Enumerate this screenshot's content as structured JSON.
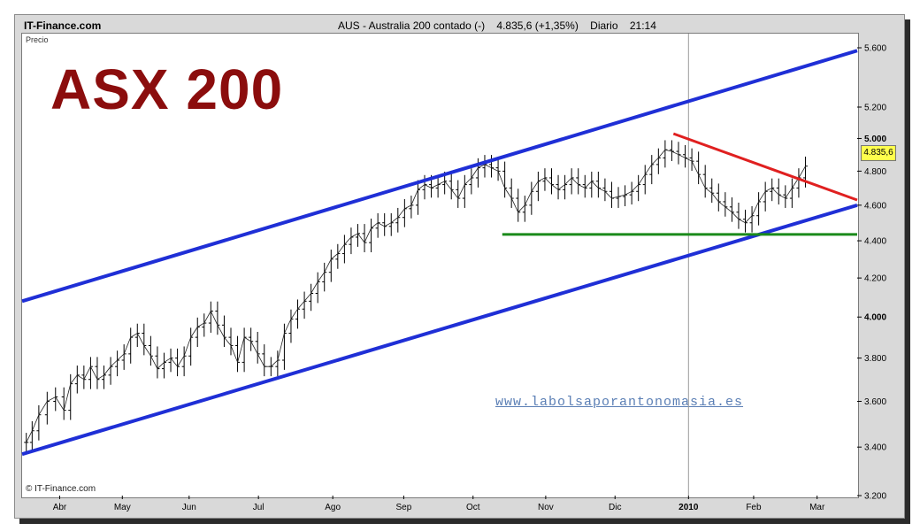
{
  "header": {
    "site": "IT-Finance.com",
    "instrument": "AUS - Australia 200 contado (-)",
    "quote": "4.835,6 (+1,35%)",
    "period": "Diario",
    "time": "21:14"
  },
  "overlay": {
    "big_title": "ASX 200",
    "price_axis_label": "Precio",
    "watermark": "www.labolsaporantonomasia.es",
    "copyright": "© IT-Finance.com",
    "current_price_tag": "4.835,6"
  },
  "colors": {
    "channel": "#1f2fd6",
    "resistance": "#e02020",
    "support": "#1a8a1a",
    "title": "#8b0d0d",
    "tag": "#ffff4d"
  },
  "chart_data": {
    "type": "line",
    "title": "ASX 200",
    "ylabel": "Precio",
    "y_scale": "log",
    "ylim": [
      3200,
      5700
    ],
    "y_ticks": [
      {
        "v": 3200,
        "label": "3.200",
        "bold": false
      },
      {
        "v": 3400,
        "label": "3.400",
        "bold": false
      },
      {
        "v": 3600,
        "label": "3.600",
        "bold": false
      },
      {
        "v": 3800,
        "label": "3.800",
        "bold": false
      },
      {
        "v": 4000,
        "label": "4.000",
        "bold": true
      },
      {
        "v": 4200,
        "label": "4.200",
        "bold": false
      },
      {
        "v": 4400,
        "label": "4.400",
        "bold": false
      },
      {
        "v": 4600,
        "label": "4.600",
        "bold": false
      },
      {
        "v": 4800,
        "label": "4.800",
        "bold": false
      },
      {
        "v": 5000,
        "label": "5.000",
        "bold": true
      },
      {
        "v": 5200,
        "label": "5.200",
        "bold": false
      },
      {
        "v": 5600,
        "label": "5.600",
        "bold": false
      }
    ],
    "x_ticks": [
      {
        "label": "Abr",
        "t": 0.045,
        "bold": false
      },
      {
        "label": "May",
        "t": 0.12,
        "bold": false
      },
      {
        "label": "Jun",
        "t": 0.2,
        "bold": false
      },
      {
        "label": "Jul",
        "t": 0.283,
        "bold": false
      },
      {
        "label": "Ago",
        "t": 0.372,
        "bold": false
      },
      {
        "label": "Sep",
        "t": 0.457,
        "bold": false
      },
      {
        "label": "Oct",
        "t": 0.54,
        "bold": false
      },
      {
        "label": "Nov",
        "t": 0.627,
        "bold": false
      },
      {
        "label": "Dic",
        "t": 0.71,
        "bold": false
      },
      {
        "label": "2010",
        "t": 0.798,
        "bold": true
      },
      {
        "label": "Feb",
        "t": 0.876,
        "bold": false
      },
      {
        "label": "Mar",
        "t": 0.952,
        "bold": false
      }
    ],
    "series": [
      {
        "type": "ohlc_close",
        "points": [
          [
            0.005,
            3420
          ],
          [
            0.012,
            3470
          ],
          [
            0.02,
            3540
          ],
          [
            0.03,
            3600
          ],
          [
            0.04,
            3620
          ],
          [
            0.05,
            3560
          ],
          [
            0.058,
            3680
          ],
          [
            0.066,
            3720
          ],
          [
            0.074,
            3700
          ],
          [
            0.082,
            3760
          ],
          [
            0.09,
            3700
          ],
          [
            0.098,
            3720
          ],
          [
            0.106,
            3760
          ],
          [
            0.114,
            3790
          ],
          [
            0.122,
            3820
          ],
          [
            0.13,
            3900
          ],
          [
            0.138,
            3920
          ],
          [
            0.146,
            3860
          ],
          [
            0.154,
            3810
          ],
          [
            0.162,
            3750
          ],
          [
            0.17,
            3780
          ],
          [
            0.178,
            3800
          ],
          [
            0.186,
            3760
          ],
          [
            0.194,
            3810
          ],
          [
            0.202,
            3900
          ],
          [
            0.21,
            3950
          ],
          [
            0.218,
            3970
          ],
          [
            0.226,
            4030
          ],
          [
            0.234,
            3960
          ],
          [
            0.242,
            3900
          ],
          [
            0.25,
            3860
          ],
          [
            0.258,
            3780
          ],
          [
            0.266,
            3900
          ],
          [
            0.274,
            3880
          ],
          [
            0.282,
            3820
          ],
          [
            0.29,
            3760
          ],
          [
            0.298,
            3760
          ],
          [
            0.306,
            3790
          ],
          [
            0.314,
            3920
          ],
          [
            0.322,
            3990
          ],
          [
            0.33,
            4040
          ],
          [
            0.338,
            4080
          ],
          [
            0.346,
            4120
          ],
          [
            0.354,
            4180
          ],
          [
            0.362,
            4230
          ],
          [
            0.37,
            4300
          ],
          [
            0.378,
            4330
          ],
          [
            0.386,
            4380
          ],
          [
            0.394,
            4420
          ],
          [
            0.402,
            4440
          ],
          [
            0.41,
            4390
          ],
          [
            0.418,
            4470
          ],
          [
            0.426,
            4500
          ],
          [
            0.434,
            4480
          ],
          [
            0.442,
            4500
          ],
          [
            0.45,
            4530
          ],
          [
            0.458,
            4580
          ],
          [
            0.466,
            4600
          ],
          [
            0.474,
            4690
          ],
          [
            0.482,
            4720
          ],
          [
            0.49,
            4700
          ],
          [
            0.498,
            4720
          ],
          [
            0.506,
            4740
          ],
          [
            0.514,
            4690
          ],
          [
            0.522,
            4640
          ],
          [
            0.53,
            4720
          ],
          [
            0.538,
            4760
          ],
          [
            0.546,
            4820
          ],
          [
            0.554,
            4840
          ],
          [
            0.562,
            4820
          ],
          [
            0.57,
            4800
          ],
          [
            0.578,
            4700
          ],
          [
            0.586,
            4640
          ],
          [
            0.594,
            4560
          ],
          [
            0.602,
            4600
          ],
          [
            0.61,
            4680
          ],
          [
            0.618,
            4740
          ],
          [
            0.626,
            4760
          ],
          [
            0.634,
            4720
          ],
          [
            0.642,
            4690
          ],
          [
            0.65,
            4720
          ],
          [
            0.658,
            4760
          ],
          [
            0.666,
            4720
          ],
          [
            0.674,
            4700
          ],
          [
            0.682,
            4740
          ],
          [
            0.69,
            4700
          ],
          [
            0.698,
            4680
          ],
          [
            0.706,
            4640
          ],
          [
            0.714,
            4650
          ],
          [
            0.722,
            4660
          ],
          [
            0.73,
            4680
          ],
          [
            0.738,
            4720
          ],
          [
            0.746,
            4780
          ],
          [
            0.754,
            4840
          ],
          [
            0.762,
            4880
          ],
          [
            0.77,
            4930
          ],
          [
            0.778,
            4920
          ],
          [
            0.786,
            4900
          ],
          [
            0.794,
            4880
          ],
          [
            0.802,
            4860
          ],
          [
            0.81,
            4780
          ],
          [
            0.818,
            4700
          ],
          [
            0.826,
            4670
          ],
          [
            0.834,
            4620
          ],
          [
            0.842,
            4590
          ],
          [
            0.85,
            4560
          ],
          [
            0.858,
            4520
          ],
          [
            0.866,
            4500
          ],
          [
            0.874,
            4540
          ],
          [
            0.882,
            4620
          ],
          [
            0.89,
            4680
          ],
          [
            0.898,
            4700
          ],
          [
            0.906,
            4660
          ],
          [
            0.914,
            4640
          ],
          [
            0.922,
            4700
          ],
          [
            0.93,
            4760
          ],
          [
            0.938,
            4830
          ]
        ]
      }
    ],
    "trendlines": [
      {
        "name": "channel-upper",
        "color": "#1f2fd6",
        "from": [
          0.0,
          4080
        ],
        "to": [
          1.0,
          5580
        ]
      },
      {
        "name": "channel-lower",
        "color": "#1f2fd6",
        "from": [
          0.0,
          3370
        ],
        "to": [
          1.0,
          4600
        ]
      },
      {
        "name": "resistance",
        "color": "#e02020",
        "from": [
          0.78,
          5030
        ],
        "to": [
          1.0,
          4630
        ]
      },
      {
        "name": "support",
        "color": "#1a8a1a",
        "from": [
          0.575,
          4435
        ],
        "to": [
          1.0,
          4435
        ]
      }
    ],
    "vertical_marker": {
      "t": 0.798
    }
  }
}
